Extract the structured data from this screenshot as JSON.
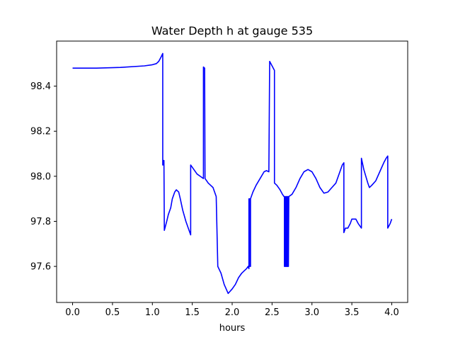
{
  "chart_data": {
    "type": "line",
    "title": "Water Depth h at gauge 535",
    "xlabel": "hours",
    "ylabel": "",
    "xlim": [
      -0.2,
      4.2
    ],
    "ylim": [
      97.44,
      98.6
    ],
    "xticks": [
      0.0,
      0.5,
      1.0,
      1.5,
      2.0,
      2.5,
      3.0,
      3.5,
      4.0
    ],
    "xtick_labels": [
      "0.0",
      "0.5",
      "1.0",
      "1.5",
      "2.0",
      "2.5",
      "3.0",
      "3.5",
      "4.0"
    ],
    "yticks": [
      97.6,
      97.8,
      98.0,
      98.2,
      98.4
    ],
    "ytick_labels": [
      "97.6",
      "97.8",
      "98.0",
      "98.2",
      "98.4"
    ],
    "grid": false,
    "series": [
      {
        "color": "#0000ff",
        "x": [
          0.0,
          0.3,
          0.6,
          0.9,
          1.0,
          1.05,
          1.08,
          1.11,
          1.13,
          1.13,
          1.135,
          1.14,
          1.145,
          1.15,
          1.15,
          1.18,
          1.2,
          1.23,
          1.25,
          1.28,
          1.3,
          1.33,
          1.35,
          1.38,
          1.42,
          1.46,
          1.48,
          1.48,
          1.52,
          1.56,
          1.6,
          1.64,
          1.64,
          1.655,
          1.655,
          1.66,
          1.66,
          1.68,
          1.7,
          1.73,
          1.76,
          1.78,
          1.79,
          1.8,
          1.82,
          1.86,
          1.9,
          1.95,
          2.0,
          2.04,
          2.08,
          2.12,
          2.15,
          2.18,
          2.2,
          2.21,
          2.21,
          2.215,
          2.215,
          2.22,
          2.22,
          2.225,
          2.225,
          2.23,
          2.23,
          2.26,
          2.3,
          2.35,
          2.4,
          2.43,
          2.46,
          2.47,
          2.47,
          2.5,
          2.53,
          2.53,
          2.56,
          2.6,
          2.63,
          2.65,
          2.655,
          2.655,
          2.66,
          2.66,
          2.665,
          2.665,
          2.67,
          2.67,
          2.675,
          2.675,
          2.68,
          2.68,
          2.685,
          2.685,
          2.69,
          2.69,
          2.695,
          2.695,
          2.7,
          2.7,
          2.705,
          2.705,
          2.71,
          2.71,
          2.75,
          2.8,
          2.85,
          2.9,
          2.95,
          3.0,
          3.05,
          3.1,
          3.15,
          3.2,
          3.25,
          3.3,
          3.35,
          3.38,
          3.4,
          3.4,
          3.42,
          3.45,
          3.48,
          3.5,
          3.55,
          3.58,
          3.6,
          3.62,
          3.62,
          3.65,
          3.7,
          3.72,
          3.75,
          3.8,
          3.85,
          3.9,
          3.93,
          3.95,
          3.95,
          3.98,
          4.0
        ],
        "y": [
          98.48,
          98.48,
          98.483,
          98.49,
          98.495,
          98.5,
          98.51,
          98.53,
          98.545,
          98.05,
          98.07,
          98.05,
          98.07,
          97.76,
          97.76,
          97.8,
          97.83,
          97.86,
          97.9,
          97.93,
          97.94,
          97.93,
          97.9,
          97.85,
          97.8,
          97.76,
          97.74,
          98.05,
          98.03,
          98.01,
          98.0,
          97.99,
          98.485,
          98.48,
          98.48,
          97.99,
          97.99,
          97.98,
          97.97,
          97.96,
          97.95,
          97.93,
          97.92,
          97.91,
          97.6,
          97.57,
          97.52,
          97.48,
          97.5,
          97.52,
          97.55,
          97.57,
          97.58,
          97.59,
          97.6,
          97.59,
          97.9,
          97.6,
          97.9,
          97.6,
          97.9,
          97.6,
          97.9,
          97.6,
          97.9,
          97.93,
          97.96,
          97.99,
          98.02,
          98.025,
          98.02,
          98.51,
          98.51,
          98.49,
          98.47,
          97.97,
          97.96,
          97.94,
          97.92,
          97.91,
          97.91,
          97.6,
          97.91,
          97.6,
          97.91,
          97.6,
          97.91,
          97.6,
          97.91,
          97.6,
          97.91,
          97.6,
          97.91,
          97.6,
          97.91,
          97.6,
          97.91,
          97.6,
          97.91,
          97.6,
          97.91,
          97.6,
          97.91,
          97.91,
          97.92,
          97.95,
          97.99,
          98.02,
          98.03,
          98.02,
          97.99,
          97.95,
          97.925,
          97.93,
          97.95,
          97.97,
          98.02,
          98.05,
          98.06,
          97.75,
          97.77,
          97.77,
          97.79,
          97.81,
          97.81,
          97.79,
          97.78,
          97.77,
          98.08,
          98.03,
          97.97,
          97.95,
          97.96,
          97.98,
          98.02,
          98.06,
          98.08,
          98.09,
          97.77,
          97.79,
          97.81
        ]
      }
    ]
  }
}
